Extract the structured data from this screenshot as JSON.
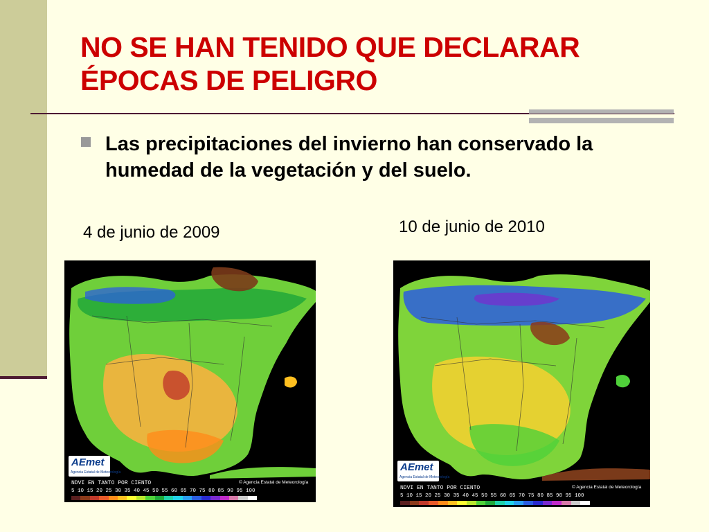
{
  "slide": {
    "title": "NO SE HAN TENIDO QUE DECLARAR ÉPOCAS DE PELIGRO",
    "bullet": "Las precipitaciones del invierno han conservado la humedad de la vegetación y del suelo."
  },
  "maps": [
    {
      "date": "4 de junio de 2009",
      "logo": "AEmet",
      "logo_subtitle": "Agencia Estatal de Meteorología",
      "legend_title": "NDVI EN TANTO POR CIENTO",
      "copyright": "© Agencia Estatal de Meteorología",
      "legend_values": "5 10 15 20 25 30 35 40 45 50 55 60 65 70 75 80 85 90 95 100"
    },
    {
      "date": "10 de junio de 2010",
      "logo": "AEmet",
      "logo_subtitle": "Agencia Estatal de Meteorología",
      "legend_title": "NDVI EN TANTO POR CIENTO",
      "copyright": "© Agencia Estatal de Meteorología",
      "legend_values": "5 10 15 20 25 30 35 40 45 50 55 60 65 70 75 80 85 90 95 100"
    }
  ],
  "legend_colors": [
    "#5a1f1f",
    "#8b3a1a",
    "#c0392b",
    "#e85a2a",
    "#ff8c1a",
    "#ffc020",
    "#ffff33",
    "#b8e62e",
    "#4fd13a",
    "#1fa83a",
    "#1fd1a8",
    "#22d3e8",
    "#2a9ef0",
    "#2b5de0",
    "#2a2ad0",
    "#7a2ad0",
    "#c02ac8",
    "#d77aa8",
    "#cccccc",
    "#ffffff"
  ],
  "colors": {
    "title": "#cc0000",
    "background": "#ffffe6",
    "side_band": "#cccc99",
    "rule": "#4d1a33"
  }
}
